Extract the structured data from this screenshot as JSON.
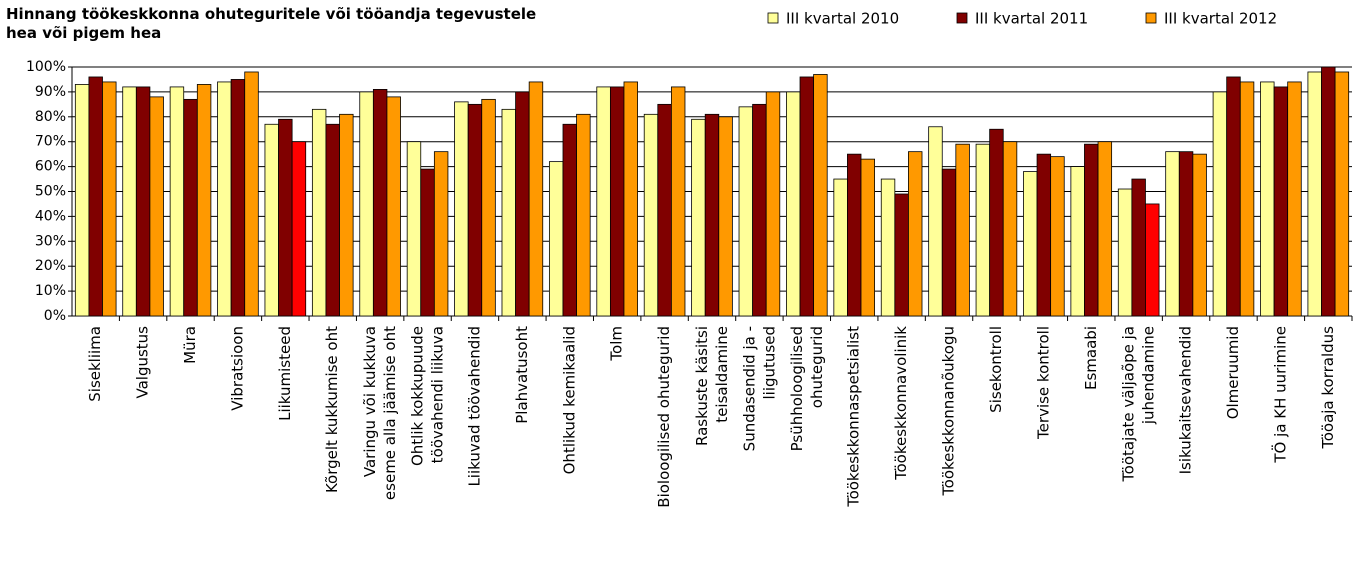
{
  "chart_data": {
    "type": "bar",
    "title": "Hinnang töökeskkonna ohuteguritele või tööandja tegevustele\nhea või pigem hea",
    "categories": [
      "Sisekliima",
      "Valgustus",
      "Müra",
      "Vibratsioon",
      "Liikumisteed",
      "Kõrgelt kukkumise oht",
      "Varingu või kukkuva\neseme alla jäämise oht",
      "Ohtlik kokkupuude\ntöövahendi liikuva",
      "Liikuvad töövahendid",
      "Plahvatusoht",
      "Ohtlikud kemikaalid",
      "Tolm",
      "Bioloogilised ohutegurid",
      "Raskuste käsitsi\nteisaldamine",
      "Sundasendid ja -\nliigutused",
      "Psühholoogilised\nohutegurid",
      "Töökeskkonnaspetsialist",
      "Töökeskkonnavolinik",
      "Töökeskkonnanõukogu",
      "Sisekontroll",
      "Tervise kontroll",
      "Esmaabi",
      "Töötajate väljaõpe ja\njuhendamine",
      "Isikukaitsevahendid",
      "Olmeruumid",
      "TÖ ja KH uurimine",
      "Tööaja korraldus"
    ],
    "series": [
      {
        "name": "III kvartal 2010",
        "color": "#ffff99",
        "values": [
          93,
          92,
          92,
          94,
          77,
          83,
          90,
          70,
          86,
          83,
          62,
          92,
          81,
          79,
          84,
          90,
          55,
          55,
          76,
          69,
          58,
          60,
          51,
          66,
          90,
          94,
          98
        ]
      },
      {
        "name": "III kvartal 2011",
        "color": "#800000",
        "values": [
          96,
          92,
          87,
          95,
          79,
          77,
          91,
          59,
          85,
          90,
          77,
          92,
          85,
          81,
          85,
          96,
          65,
          49,
          59,
          75,
          65,
          69,
          55,
          66,
          96,
          92,
          100
        ]
      },
      {
        "name": "III kvartal 2012",
        "color": "#ff9900",
        "values": [
          94,
          88,
          93,
          98,
          70,
          81,
          88,
          66,
          87,
          94,
          81,
          94,
          92,
          80,
          90,
          97,
          63,
          66,
          69,
          70,
          64,
          70,
          45,
          65,
          94,
          94,
          98
        ],
        "colors": [
          "#ff9900",
          "#ff9900",
          "#ff9900",
          "#ff9900",
          "#ff0000",
          "#ff9900",
          "#ff9900",
          "#ff9900",
          "#ff9900",
          "#ff9900",
          "#ff9900",
          "#ff9900",
          "#ff9900",
          "#ff9900",
          "#ff9900",
          "#ff9900",
          "#ff9900",
          "#ff9900",
          "#ff9900",
          "#ff9900",
          "#ff9900",
          "#ff9900",
          "#ff0000",
          "#ff9900",
          "#ff9900",
          "#ff9900",
          "#ff9900"
        ]
      }
    ],
    "ylim": [
      0,
      100
    ],
    "yticks": [
      {
        "value": 0,
        "label": "0%"
      },
      {
        "value": 10,
        "label": "10%"
      },
      {
        "value": 20,
        "label": "20%"
      },
      {
        "value": 30,
        "label": "30%"
      },
      {
        "value": 40,
        "label": "40%"
      },
      {
        "value": 50,
        "label": "50%"
      },
      {
        "value": 60,
        "label": "60%"
      },
      {
        "value": 70,
        "label": "70%"
      },
      {
        "value": 80,
        "label": "80%"
      },
      {
        "value": 90,
        "label": "90%"
      },
      {
        "value": 100,
        "label": "100%"
      }
    ],
    "grid": true,
    "legend": "top-right"
  }
}
